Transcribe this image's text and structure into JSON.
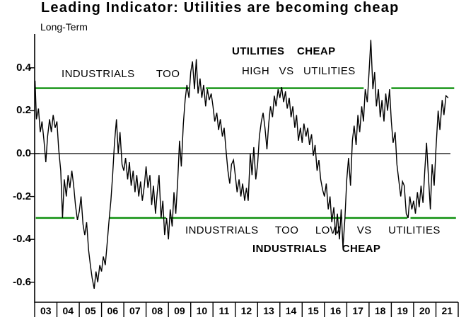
{
  "title": "Leading Indicator: Utilities are becoming cheap",
  "subtitle": "Long-Term",
  "annotations": {
    "upper_left": "INDUSTRIALS TOO",
    "upper_bold": "UTILITIES CHEAP",
    "upper_right": "HIGH VS UTILITIES",
    "lower_line": "INDUSTRIALS TOO LOW VS UTILITIES",
    "lower_bold": "INDUSTRIALS CHEAP"
  },
  "colors": {
    "series": "#000000",
    "threshold_line": "#0b8f0b",
    "axis": "#000000",
    "background": "#ffffff"
  },
  "chart_data": {
    "type": "line",
    "title": "Leading Indicator: Utilities are becoming cheap",
    "subtitle": "Long-Term",
    "xlabel": "",
    "ylabel": "",
    "x_unit": "year",
    "xlim": [
      2003,
      2021.9
    ],
    "ylim": [
      -0.69,
      0.56
    ],
    "grid": false,
    "legend_position": "none",
    "zero_line": true,
    "y_ticks": [
      0.4,
      0.2,
      0.0,
      -0.2,
      -0.4,
      -0.6
    ],
    "y_tick_labels": [
      "0.4",
      "0.2",
      "0.0",
      "-0.2",
      "-0.4",
      "-0.6"
    ],
    "x_tick_labels": [
      "03",
      "04",
      "05",
      "06",
      "07",
      "08",
      "09",
      "10",
      "11",
      "12",
      "13",
      "14",
      "15",
      "16",
      "17",
      "18",
      "19",
      "20",
      "21"
    ],
    "thresholds": {
      "upper": 0.305,
      "lower": -0.3,
      "upper_segments_years": [
        [
          2003.02,
          2009.92
        ],
        [
          2010.68,
          2017.76
        ],
        [
          2019.0,
          2021.82
        ]
      ],
      "lower_segments_years": [
        [
          2003.05,
          2004.79
        ],
        [
          2006.36,
          2008.9
        ],
        [
          2009.04,
          2016.8
        ],
        [
          2016.94,
          2019.72
        ],
        [
          2019.86,
          2021.9
        ]
      ]
    },
    "series": [
      {
        "name": "indicator",
        "color": "#000000",
        "points": [
          [
            2003.02,
            0.34
          ],
          [
            2003.08,
            0.16
          ],
          [
            2003.17,
            0.21
          ],
          [
            2003.25,
            0.1
          ],
          [
            2003.33,
            0.15
          ],
          [
            2003.42,
            0.06
          ],
          [
            2003.5,
            -0.04
          ],
          [
            2003.58,
            0.08
          ],
          [
            2003.67,
            0.16
          ],
          [
            2003.75,
            0.1
          ],
          [
            2003.83,
            0.18
          ],
          [
            2003.92,
            0.12
          ],
          [
            2004.0,
            0.15
          ],
          [
            2004.08,
            0.02
          ],
          [
            2004.17,
            -0.08
          ],
          [
            2004.25,
            -0.3
          ],
          [
            2004.33,
            -0.12
          ],
          [
            2004.42,
            -0.2
          ],
          [
            2004.5,
            -0.1
          ],
          [
            2004.58,
            -0.16
          ],
          [
            2004.67,
            -0.08
          ],
          [
            2004.75,
            -0.15
          ],
          [
            2004.83,
            -0.24
          ],
          [
            2004.92,
            -0.31
          ],
          [
            2005.0,
            -0.27
          ],
          [
            2005.08,
            -0.2
          ],
          [
            2005.17,
            -0.33
          ],
          [
            2005.25,
            -0.38
          ],
          [
            2005.33,
            -0.32
          ],
          [
            2005.42,
            -0.45
          ],
          [
            2005.5,
            -0.52
          ],
          [
            2005.58,
            -0.58
          ],
          [
            2005.67,
            -0.63
          ],
          [
            2005.75,
            -0.55
          ],
          [
            2005.83,
            -0.6
          ],
          [
            2005.92,
            -0.52
          ],
          [
            2006.0,
            -0.55
          ],
          [
            2006.08,
            -0.48
          ],
          [
            2006.17,
            -0.52
          ],
          [
            2006.25,
            -0.42
          ],
          [
            2006.33,
            -0.32
          ],
          [
            2006.42,
            -0.22
          ],
          [
            2006.5,
            -0.1
          ],
          [
            2006.58,
            0.05
          ],
          [
            2006.67,
            0.16
          ],
          [
            2006.75,
            0.0
          ],
          [
            2006.83,
            0.1
          ],
          [
            2006.92,
            -0.05
          ],
          [
            2007.0,
            -0.08
          ],
          [
            2007.08,
            -0.02
          ],
          [
            2007.17,
            -0.12
          ],
          [
            2007.25,
            -0.04
          ],
          [
            2007.33,
            -0.15
          ],
          [
            2007.42,
            -0.08
          ],
          [
            2007.5,
            -0.18
          ],
          [
            2007.58,
            -0.1
          ],
          [
            2007.67,
            -0.2
          ],
          [
            2007.75,
            -0.13
          ],
          [
            2007.83,
            -0.22
          ],
          [
            2007.92,
            -0.15
          ],
          [
            2008.0,
            -0.06
          ],
          [
            2008.08,
            -0.16
          ],
          [
            2008.17,
            -0.1
          ],
          [
            2008.25,
            -0.24
          ],
          [
            2008.33,
            -0.15
          ],
          [
            2008.42,
            -0.28
          ],
          [
            2008.5,
            -0.18
          ],
          [
            2008.58,
            -0.1
          ],
          [
            2008.67,
            -0.3
          ],
          [
            2008.75,
            -0.22
          ],
          [
            2008.83,
            -0.38
          ],
          [
            2008.92,
            -0.3
          ],
          [
            2009.0,
            -0.4
          ],
          [
            2009.08,
            -0.26
          ],
          [
            2009.17,
            -0.34
          ],
          [
            2009.25,
            -0.18
          ],
          [
            2009.33,
            -0.28
          ],
          [
            2009.42,
            -0.12
          ],
          [
            2009.5,
            0.06
          ],
          [
            2009.58,
            -0.06
          ],
          [
            2009.67,
            0.14
          ],
          [
            2009.75,
            0.25
          ],
          [
            2009.83,
            0.32
          ],
          [
            2009.92,
            0.26
          ],
          [
            2010.0,
            0.38
          ],
          [
            2010.08,
            0.43
          ],
          [
            2010.17,
            0.3
          ],
          [
            2010.25,
            0.44
          ],
          [
            2010.33,
            0.28
          ],
          [
            2010.42,
            0.35
          ],
          [
            2010.5,
            0.26
          ],
          [
            2010.58,
            0.32
          ],
          [
            2010.67,
            0.22
          ],
          [
            2010.75,
            0.3
          ],
          [
            2010.83,
            0.25
          ],
          [
            2010.92,
            0.28
          ],
          [
            2011.0,
            0.22
          ],
          [
            2011.08,
            0.15
          ],
          [
            2011.17,
            0.19
          ],
          [
            2011.25,
            0.11
          ],
          [
            2011.33,
            0.16
          ],
          [
            2011.42,
            0.08
          ],
          [
            2011.5,
            0.12
          ],
          [
            2011.58,
            0.02
          ],
          [
            2011.67,
            -0.08
          ],
          [
            2011.75,
            -0.14
          ],
          [
            2011.83,
            -0.05
          ],
          [
            2011.92,
            -0.03
          ],
          [
            2012.0,
            -0.1
          ],
          [
            2012.08,
            -0.18
          ],
          [
            2012.17,
            -0.12
          ],
          [
            2012.25,
            -0.2
          ],
          [
            2012.33,
            -0.14
          ],
          [
            2012.42,
            -0.22
          ],
          [
            2012.5,
            -0.16
          ],
          [
            2012.58,
            -0.22
          ],
          [
            2012.67,
            0.0
          ],
          [
            2012.75,
            -0.1
          ],
          [
            2012.83,
            0.03
          ],
          [
            2012.92,
            -0.12
          ],
          [
            2013.0,
            -0.05
          ],
          [
            2013.08,
            0.08
          ],
          [
            2013.17,
            0.15
          ],
          [
            2013.25,
            0.19
          ],
          [
            2013.33,
            0.12
          ],
          [
            2013.42,
            0.02
          ],
          [
            2013.5,
            0.14
          ],
          [
            2013.58,
            0.22
          ],
          [
            2013.67,
            0.17
          ],
          [
            2013.75,
            0.27
          ],
          [
            2013.83,
            0.22
          ],
          [
            2013.92,
            0.3
          ],
          [
            2014.0,
            0.26
          ],
          [
            2014.08,
            0.31
          ],
          [
            2014.17,
            0.24
          ],
          [
            2014.25,
            0.29
          ],
          [
            2014.33,
            0.21
          ],
          [
            2014.42,
            0.26
          ],
          [
            2014.5,
            0.17
          ],
          [
            2014.58,
            0.22
          ],
          [
            2014.67,
            0.12
          ],
          [
            2014.75,
            0.18
          ],
          [
            2014.83,
            0.06
          ],
          [
            2014.92,
            0.12
          ],
          [
            2015.0,
            0.05
          ],
          [
            2015.08,
            0.14
          ],
          [
            2015.17,
            0.08
          ],
          [
            2015.25,
            0.12
          ],
          [
            2015.33,
            0.04
          ],
          [
            2015.42,
            0.09
          ],
          [
            2015.5,
            -0.01
          ],
          [
            2015.58,
            0.04
          ],
          [
            2015.67,
            -0.08
          ],
          [
            2015.75,
            -0.03
          ],
          [
            2015.83,
            -0.12
          ],
          [
            2015.92,
            -0.17
          ],
          [
            2016.0,
            -0.2
          ],
          [
            2016.08,
            -0.14
          ],
          [
            2016.17,
            -0.26
          ],
          [
            2016.25,
            -0.2
          ],
          [
            2016.33,
            -0.32
          ],
          [
            2016.42,
            -0.25
          ],
          [
            2016.5,
            -0.38
          ],
          [
            2016.58,
            -0.28
          ],
          [
            2016.67,
            -0.4
          ],
          [
            2016.75,
            -0.26
          ],
          [
            2016.83,
            -0.44
          ],
          [
            2016.92,
            -0.3
          ],
          [
            2017.0,
            -0.12
          ],
          [
            2017.08,
            -0.02
          ],
          [
            2017.17,
            -0.15
          ],
          [
            2017.25,
            0.06
          ],
          [
            2017.33,
            0.13
          ],
          [
            2017.42,
            0.04
          ],
          [
            2017.5,
            0.18
          ],
          [
            2017.58,
            0.1
          ],
          [
            2017.67,
            0.22
          ],
          [
            2017.75,
            0.15
          ],
          [
            2017.83,
            0.3
          ],
          [
            2017.92,
            0.24
          ],
          [
            2018.0,
            0.38
          ],
          [
            2018.08,
            0.53
          ],
          [
            2018.17,
            0.3
          ],
          [
            2018.25,
            0.38
          ],
          [
            2018.33,
            0.22
          ],
          [
            2018.42,
            0.3
          ],
          [
            2018.5,
            0.17
          ],
          [
            2018.58,
            0.25
          ],
          [
            2018.67,
            0.15
          ],
          [
            2018.75,
            0.28
          ],
          [
            2018.83,
            0.2
          ],
          [
            2018.92,
            0.3
          ],
          [
            2019.0,
            0.15
          ],
          [
            2019.08,
            0.05
          ],
          [
            2019.17,
            0.1
          ],
          [
            2019.25,
            -0.05
          ],
          [
            2019.33,
            -0.12
          ],
          [
            2019.42,
            -0.2
          ],
          [
            2019.5,
            -0.13
          ],
          [
            2019.58,
            -0.15
          ],
          [
            2019.67,
            -0.28
          ],
          [
            2019.75,
            -0.3
          ],
          [
            2019.83,
            -0.2
          ],
          [
            2019.92,
            -0.26
          ],
          [
            2020.0,
            -0.22
          ],
          [
            2020.08,
            -0.28
          ],
          [
            2020.17,
            -0.18
          ],
          [
            2020.25,
            -0.25
          ],
          [
            2020.33,
            -0.15
          ],
          [
            2020.42,
            -0.23
          ],
          [
            2020.5,
            -0.08
          ],
          [
            2020.58,
            0.05
          ],
          [
            2020.67,
            -0.12
          ],
          [
            2020.75,
            -0.26
          ],
          [
            2020.83,
            -0.05
          ],
          [
            2020.92,
            -0.15
          ],
          [
            2021.0,
            0.02
          ],
          [
            2021.1,
            0.2
          ],
          [
            2021.18,
            0.11
          ],
          [
            2021.28,
            0.25
          ],
          [
            2021.36,
            0.18
          ],
          [
            2021.45,
            0.27
          ],
          [
            2021.55,
            0.26
          ]
        ]
      }
    ]
  }
}
